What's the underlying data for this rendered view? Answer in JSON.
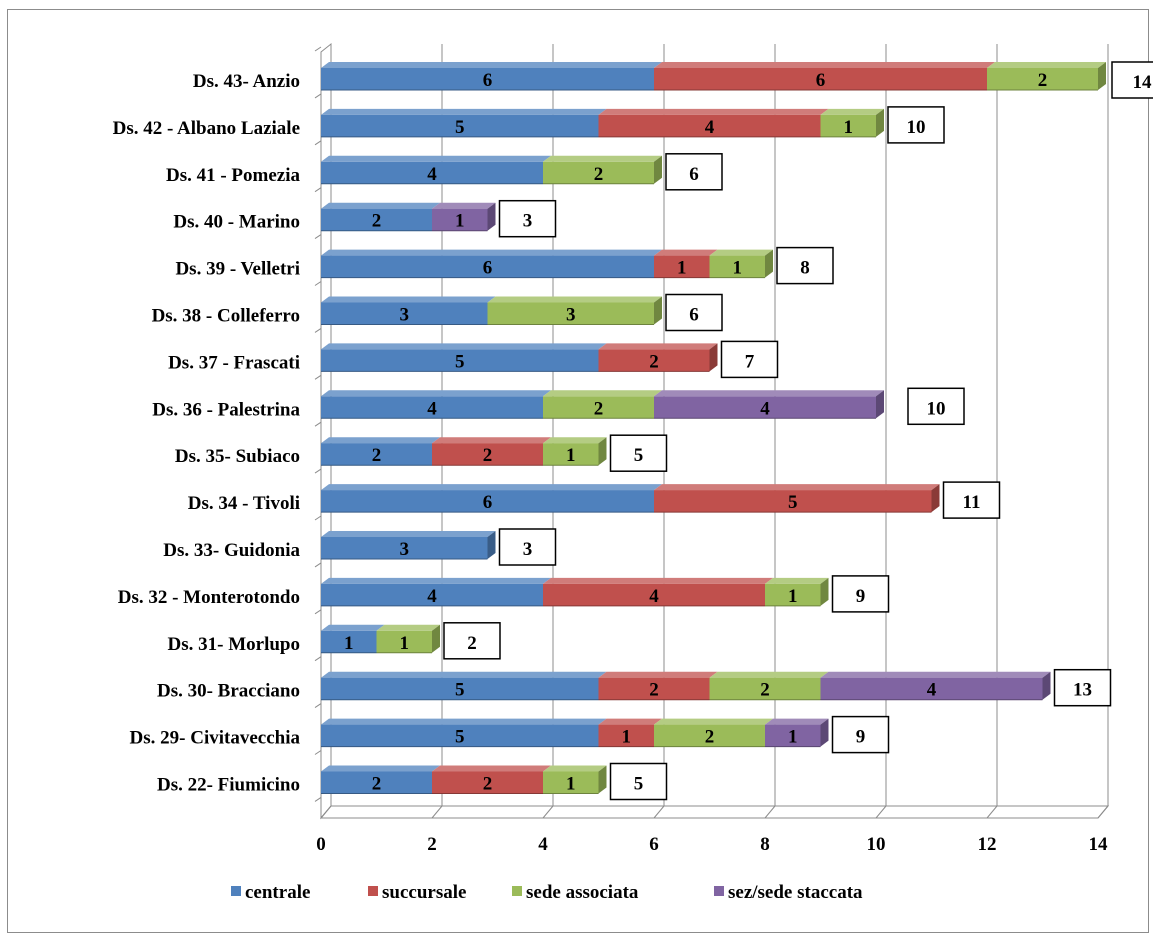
{
  "chart_data": {
    "type": "bar",
    "orientation": "horizontal",
    "stacked": true,
    "style": "3d",
    "categories": [
      "Ds. 43- Anzio",
      "Ds. 42 - Albano Laziale",
      "Ds. 41 - Pomezia",
      "Ds. 40 - Marino",
      "Ds. 39 -  Velletri",
      "Ds. 38 - Colleferro",
      "Ds. 37 - Frascati",
      "Ds. 36 - Palestrina",
      "Ds. 35- Subiaco",
      "Ds. 34 - Tivoli",
      "Ds. 33- Guidonia",
      "Ds. 32 - Monterotondo",
      "Ds. 31- Morlupo",
      "Ds. 30- Bracciano",
      "Ds. 29- Civitavecchia",
      "Ds. 22- Fiumicino"
    ],
    "series": [
      {
        "name": "centrale",
        "color": "#4f81bd",
        "values": [
          6,
          5,
          4,
          2,
          6,
          3,
          5,
          4,
          2,
          6,
          3,
          4,
          1,
          5,
          5,
          2
        ]
      },
      {
        "name": "succursale",
        "color": "#c0504d",
        "values": [
          6,
          4,
          0,
          0,
          1,
          0,
          2,
          0,
          2,
          5,
          0,
          4,
          0,
          2,
          1,
          2
        ]
      },
      {
        "name": "sede associata",
        "color": "#9bbb59",
        "values": [
          2,
          1,
          2,
          0,
          1,
          3,
          0,
          2,
          1,
          0,
          0,
          1,
          1,
          2,
          2,
          1
        ]
      },
      {
        "name": "sez/sede staccata",
        "color": "#8064a2",
        "values": [
          0,
          0,
          0,
          1,
          0,
          0,
          0,
          4,
          0,
          0,
          0,
          0,
          0,
          4,
          1,
          0
        ]
      }
    ],
    "totals": [
      "14",
      "10",
      "6",
      "3",
      "8",
      "6",
      "7",
      "10",
      "5",
      "11",
      "3",
      "9",
      "2",
      "13",
      "9",
      "5"
    ],
    "xlim": [
      0,
      14
    ],
    "xticks": [
      "0",
      "2",
      "4",
      "6",
      "8",
      "10",
      "12",
      "14"
    ],
    "grid": true,
    "legend": "bottom"
  }
}
